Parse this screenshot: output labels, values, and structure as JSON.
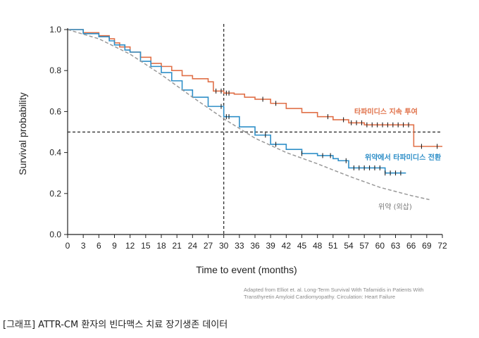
{
  "chart_data": {
    "type": "line",
    "xlabel": "Time to event (months)",
    "ylabel": "Survival probability",
    "xlim": [
      0,
      72
    ],
    "ylim": [
      0,
      1.0
    ],
    "x_ticks": [
      0,
      3,
      6,
      9,
      12,
      15,
      18,
      21,
      24,
      27,
      30,
      33,
      36,
      39,
      42,
      45,
      48,
      51,
      54,
      57,
      60,
      63,
      66,
      69,
      72
    ],
    "y_ticks": [
      0.0,
      0.2,
      0.4,
      0.6,
      0.8,
      1.0
    ],
    "y_tick_labels": [
      "0.0",
      "0.2",
      "0.4",
      "0.6",
      "0.8",
      "1.0"
    ],
    "reference_lines": {
      "x": 30,
      "y": 0.5
    },
    "series": [
      {
        "name": "타파미디스 지속 투여",
        "color": "#e07048",
        "style": "step",
        "x": [
          0,
          3,
          6,
          8,
          9,
          10,
          12,
          14,
          16,
          18,
          20,
          22,
          24,
          27,
          28,
          30,
          32,
          34,
          36,
          39,
          42,
          45,
          48,
          51,
          54,
          57,
          60,
          63,
          66,
          66.5,
          69,
          72
        ],
        "y": [
          1.0,
          0.985,
          0.97,
          0.955,
          0.935,
          0.915,
          0.89,
          0.865,
          0.835,
          0.82,
          0.8,
          0.775,
          0.76,
          0.745,
          0.7,
          0.69,
          0.685,
          0.67,
          0.66,
          0.64,
          0.615,
          0.595,
          0.575,
          0.56,
          0.545,
          0.535,
          0.535,
          0.535,
          0.535,
          0.43,
          0.43,
          0.43
        ],
        "censor_x": [
          28.5,
          29.5,
          30.5,
          31,
          37.5,
          40,
          50,
          53,
          54.5,
          55.5,
          56.5,
          57.5,
          58.5,
          59.5,
          60.5,
          61.5,
          62.5,
          63.5,
          64.5,
          65.5,
          68,
          71
        ]
      },
      {
        "name": "위약에서 타파미디스 전환",
        "color": "#2f8fc8",
        "style": "step",
        "x": [
          0,
          3,
          6,
          8,
          9,
          11,
          12,
          14,
          16,
          18,
          20,
          22,
          24,
          27,
          30,
          33,
          36,
          39,
          42,
          45,
          48,
          51,
          52,
          54,
          57,
          60,
          61,
          63,
          65
        ],
        "y": [
          1.0,
          0.98,
          0.965,
          0.945,
          0.925,
          0.9,
          0.89,
          0.845,
          0.82,
          0.79,
          0.75,
          0.705,
          0.67,
          0.625,
          0.575,
          0.525,
          0.485,
          0.44,
          0.415,
          0.395,
          0.385,
          0.37,
          0.36,
          0.325,
          0.325,
          0.325,
          0.3,
          0.3,
          0.3
        ],
        "censor_x": [
          29.5,
          30.5,
          31,
          38,
          40,
          45,
          49,
          50.5,
          53.5,
          55,
          56,
          57,
          58,
          59,
          60,
          61,
          62,
          63,
          64
        ]
      },
      {
        "name": "위약 (외삽)",
        "color": "#999999",
        "style": "dashed",
        "x": [
          0,
          6,
          12,
          18,
          24,
          30,
          36,
          42,
          48,
          54,
          60,
          66,
          69.5
        ],
        "y": [
          1.0,
          0.955,
          0.88,
          0.78,
          0.67,
          0.565,
          0.47,
          0.4,
          0.345,
          0.285,
          0.23,
          0.19,
          0.17
        ]
      }
    ]
  },
  "source_note": "Adapted from Elliot et. al. Long-Term Survival With Tafamidis in Patients With Transthyretin Amyloid Cardiomyopathy. Circulation: Heart Failure",
  "caption": "[그래프] ATTR-CM 환자의 빈다맥스 치료 장기생존 데이터"
}
